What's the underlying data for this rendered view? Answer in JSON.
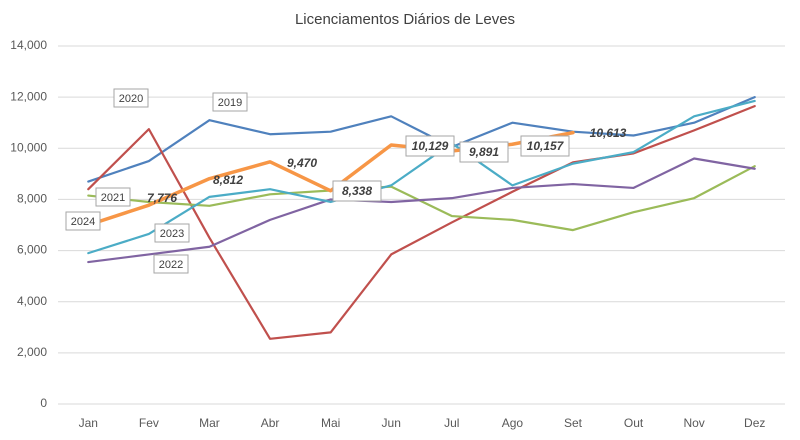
{
  "chart_data": {
    "type": "line",
    "title": "Licenciamentos Diários de Leves",
    "categories": [
      "Jan",
      "Fev",
      "Mar",
      "Abr",
      "Mai",
      "Jun",
      "Jul",
      "Ago",
      "Set",
      "Out",
      "Nov",
      "Dez"
    ],
    "ylim": [
      0,
      14000
    ],
    "yticks": [
      0,
      {
        "value": 2000,
        "label": "2,000"
      },
      {
        "value": 4000,
        "label": "4,000"
      },
      {
        "value": 6000,
        "label": "6,000"
      },
      {
        "value": 8000,
        "label": "8,000"
      },
      {
        "value": 10000,
        "label": "10,000"
      },
      {
        "value": 12000,
        "label": "12,000"
      },
      {
        "value": 14000,
        "label": "14,000"
      }
    ],
    "grid": true,
    "series": [
      {
        "name": "2019",
        "color": "#4f81bd",
        "values": [
          8700,
          9500,
          11100,
          10550,
          10650,
          11250,
          10050,
          11000,
          10650,
          10500,
          11000,
          12000
        ]
      },
      {
        "name": "2020",
        "color": "#c0504d",
        "values": [
          8400,
          10750,
          6500,
          2550,
          2800,
          5850,
          7100,
          8300,
          9450,
          9800,
          10700,
          11650
        ]
      },
      {
        "name": "2021",
        "color": "#9bbb59",
        "values": [
          8150,
          7900,
          7750,
          8200,
          8350,
          8500,
          7350,
          7200,
          6800,
          7500,
          8050,
          9300
        ]
      },
      {
        "name": "2022",
        "color": "#8064a2",
        "values": [
          5550,
          5850,
          6150,
          7200,
          8000,
          7900,
          8050,
          8450,
          8600,
          8450,
          9600,
          9200
        ]
      },
      {
        "name": "2023",
        "color": "#4bacc6",
        "values": [
          5900,
          6650,
          8100,
          8400,
          7900,
          8550,
          10200,
          8550,
          9400,
          9850,
          11250,
          11850
        ]
      },
      {
        "name": "2024",
        "color": "#f79646",
        "values": [
          7000,
          7776,
          8812,
          9470,
          8338,
          10129,
          9891,
          10157,
          10613,
          null,
          null,
          null
        ],
        "value_labels": [
          null,
          "7,776",
          "8,812",
          "9,470",
          "8,338",
          "10,129",
          "9,891",
          "10,157",
          "10,613",
          null,
          null,
          null
        ]
      }
    ]
  }
}
